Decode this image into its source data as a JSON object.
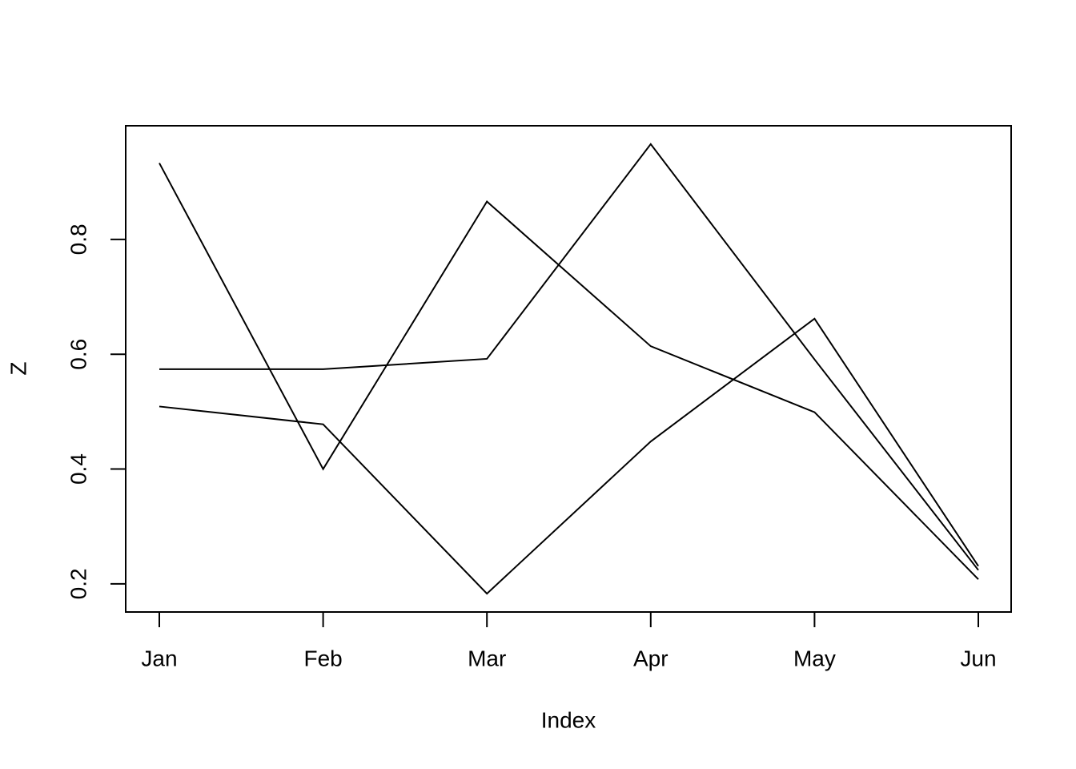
{
  "chart_data": {
    "type": "line",
    "xlabel": "Index",
    "ylabel": "Z",
    "categories": [
      "Jan",
      "Feb",
      "Mar",
      "Apr",
      "May",
      "Jun"
    ],
    "series": [
      {
        "color": "#000000",
        "values": [
          0.933,
          0.4,
          0.866,
          0.614,
          0.499,
          0.208
        ]
      },
      {
        "color": "#000000",
        "values": [
          0.574,
          0.574,
          0.592,
          0.966,
          0.591,
          0.224
        ]
      },
      {
        "color": "#000000",
        "values": [
          0.509,
          0.478,
          0.183,
          0.448,
          0.662,
          0.231
        ]
      }
    ],
    "ylim": [
      0.151,
      0.998
    ],
    "yticks": [
      0.2,
      0.4,
      0.6,
      0.8
    ]
  }
}
